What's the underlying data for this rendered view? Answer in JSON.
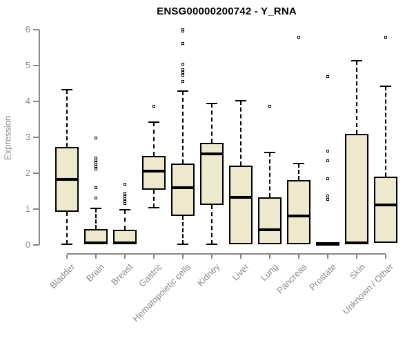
{
  "chart_data": {
    "type": "boxplot",
    "title": "ENSG00000200742 - Y_RNA",
    "ylabel": "Expression",
    "xlabel": "",
    "ylim": [
      0,
      6
    ],
    "yticks": [
      0,
      1,
      2,
      3,
      4,
      5,
      6
    ],
    "grid": false,
    "legend": false,
    "categories": [
      "Bladder",
      "Brain",
      "Breast",
      "Gastric",
      "Hematopoietic cells",
      "Kidney",
      "Liver",
      "Lung",
      "Pancreas",
      "Prostate",
      "Skin",
      "Unknown / Other"
    ],
    "series": [
      {
        "name": "Bladder",
        "whisker_low": 0.02,
        "q1": 0.92,
        "median": 1.82,
        "q3": 2.73,
        "whisker_high": 4.33,
        "outliers": []
      },
      {
        "name": "Brain",
        "whisker_low": 0.0,
        "q1": 0.01,
        "median": 0.06,
        "q3": 0.44,
        "whisker_high": 1.02,
        "outliers": [
          1.3,
          1.58,
          2.1,
          2.18,
          2.25,
          2.28,
          2.35,
          2.42,
          2.98
        ]
      },
      {
        "name": "Breast",
        "whisker_low": 0.0,
        "q1": 0.01,
        "median": 0.05,
        "q3": 0.43,
        "whisker_high": 0.98,
        "outliers": [
          1.15,
          1.21,
          1.27,
          1.33,
          1.39,
          1.44,
          1.68
        ]
      },
      {
        "name": "Gastric",
        "whisker_low": 1.03,
        "q1": 1.53,
        "median": 2.06,
        "q3": 2.48,
        "whisker_high": 3.42,
        "outliers": [
          3.86
        ]
      },
      {
        "name": "Hematopoietic cells",
        "whisker_low": 0.02,
        "q1": 0.8,
        "median": 1.59,
        "q3": 2.26,
        "whisker_high": 4.28,
        "outliers": [
          4.55,
          4.72,
          4.8,
          4.88,
          5.03,
          5.6,
          5.95,
          6.0
        ]
      },
      {
        "name": "Kidney",
        "whisker_low": 0.02,
        "q1": 1.12,
        "median": 2.54,
        "q3": 2.85,
        "whisker_high": 3.95,
        "outliers": []
      },
      {
        "name": "Liver",
        "whisker_low": 0.02,
        "q1": 0.02,
        "median": 1.33,
        "q3": 2.21,
        "whisker_high": 4.02,
        "outliers": []
      },
      {
        "name": "Lung",
        "whisker_low": 0.02,
        "q1": 0.02,
        "median": 0.42,
        "q3": 1.33,
        "whisker_high": 2.58,
        "outliers": [
          3.85
        ]
      },
      {
        "name": "Pancreas",
        "whisker_low": 0.02,
        "q1": 0.02,
        "median": 0.81,
        "q3": 1.81,
        "whisker_high": 2.27,
        "outliers": [
          5.78
        ]
      },
      {
        "name": "Prostate",
        "whisker_low": 0.0,
        "q1": 0.0,
        "median": 0.03,
        "q3": 0.05,
        "whisker_high": 0.05,
        "outliers": [
          1.26,
          1.35,
          1.83,
          2.34,
          2.61,
          4.68
        ]
      },
      {
        "name": "Skin",
        "whisker_low": 0.02,
        "q1": 0.02,
        "median": 0.05,
        "q3": 3.09,
        "whisker_high": 5.13,
        "outliers": []
      },
      {
        "name": "Unknown / Other",
        "whisker_low": 0.05,
        "q1": 0.05,
        "median": 1.12,
        "q3": 1.91,
        "whisker_high": 4.43,
        "outliers": [
          5.78
        ]
      }
    ],
    "colors": {
      "box_fill": "#EEE8CD",
      "box_border": "#000000",
      "median": "#000000",
      "axis": "#878787",
      "tick_label": "#8a8a8a",
      "title": "#000000",
      "background": "#ffffff"
    }
  }
}
